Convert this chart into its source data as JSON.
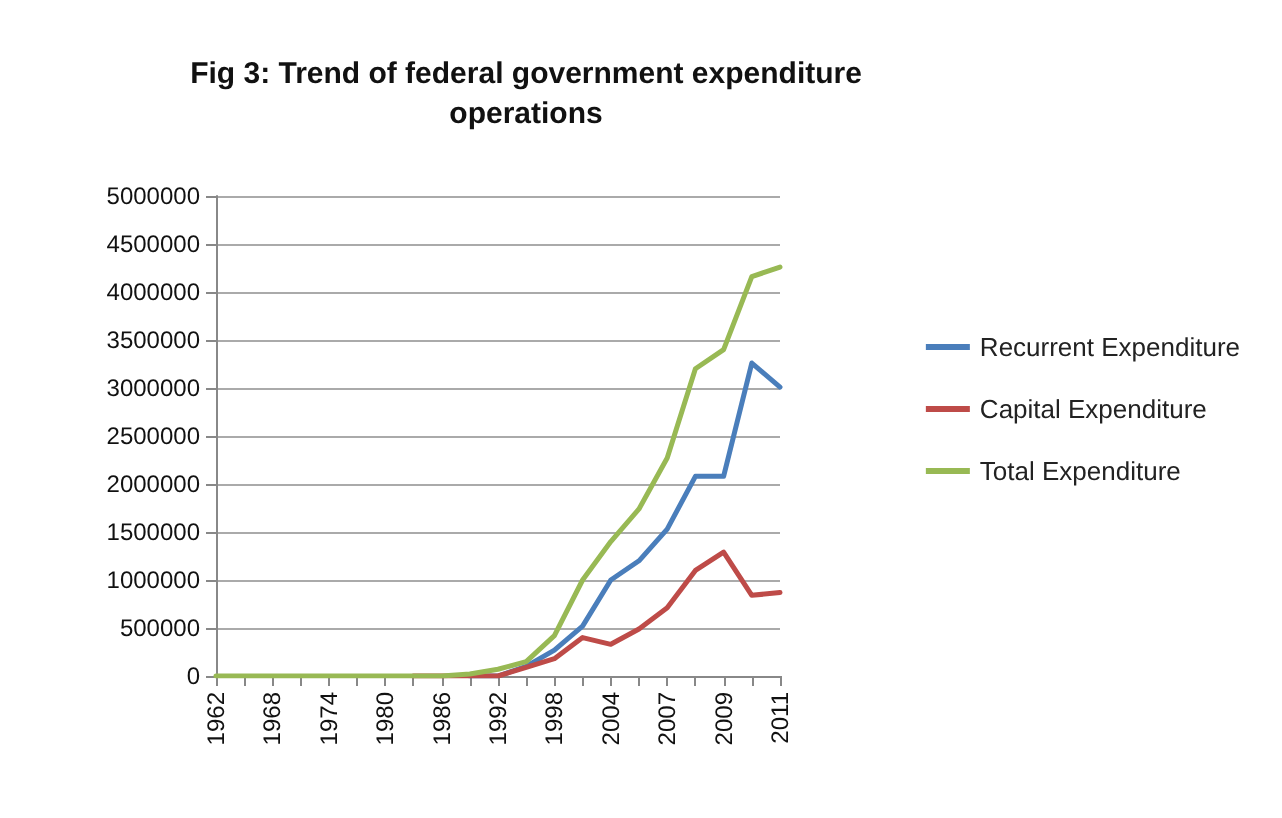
{
  "chart_data": {
    "type": "line",
    "title": "Fig 3: Trend of federal government expenditure\noperations",
    "categories": [
      "1962",
      null,
      "1968",
      null,
      "1974",
      null,
      "1980",
      null,
      "1986",
      null,
      "1992",
      null,
      "1998",
      null,
      "2004",
      null,
      "2007",
      null,
      "2009",
      null,
      "2011"
    ],
    "series": [
      {
        "name": "Recurrent Expenditure",
        "color": "#4a7ebb",
        "values": [
          null,
          null,
          null,
          null,
          null,
          null,
          null,
          null,
          null,
          0,
          0,
          100000,
          270000,
          520000,
          1000000,
          1200000,
          1530000,
          2080000,
          2080000,
          3260000,
          3010000
        ]
      },
      {
        "name": "Capital Expenditure",
        "color": "#be4b48",
        "values": [
          null,
          null,
          null,
          null,
          null,
          null,
          null,
          0,
          0,
          0,
          0,
          90000,
          180000,
          400000,
          330000,
          490000,
          710000,
          1100000,
          1290000,
          840000,
          870000
        ]
      },
      {
        "name": "Total Expenditure",
        "color": "#98b954",
        "values": [
          0,
          0,
          0,
          0,
          0,
          0,
          0,
          0,
          0,
          20000,
          70000,
          150000,
          420000,
          1000000,
          1400000,
          1740000,
          2270000,
          3200000,
          3400000,
          4160000,
          4260000
        ]
      }
    ],
    "ylim": [
      0,
      5000000
    ],
    "yticks": [
      0,
      500000,
      1000000,
      1500000,
      2000000,
      2500000,
      3000000,
      3500000,
      4000000,
      4500000,
      5000000
    ],
    "grid": "y",
    "legend": "right",
    "marker": "none",
    "line_style": "solid"
  }
}
